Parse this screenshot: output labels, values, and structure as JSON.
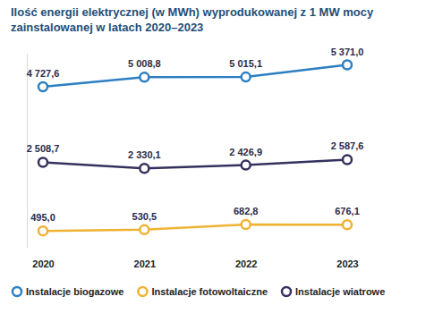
{
  "chart_data": {
    "type": "line",
    "title": "Ilość energii elektrycznej (w MWh) wyprodukowanej z 1 MW mocy zainstalowanej w latach 2020–2023",
    "categories": [
      "2020",
      "2021",
      "2022",
      "2023"
    ],
    "series": [
      {
        "name": "Instalacje biogazowe",
        "color": "#2b7fc2",
        "marker": "circle",
        "values": [
          4727.6,
          5008.8,
          5015.1,
          5371.0
        ],
        "value_labels": [
          "4 727,6",
          "5 008,8",
          "5 015,1",
          "5 371,0"
        ]
      },
      {
        "name": "Instalacje fotowoltaiczne",
        "color": "#f0b232",
        "marker": "circle",
        "values": [
          495.0,
          530.5,
          682.8,
          676.1
        ],
        "value_labels": [
          "495,0",
          "530,5",
          "682,8",
          "676,1"
        ]
      },
      {
        "name": "Instalacje wiatrowe",
        "color": "#35315f",
        "marker": "circle",
        "values": [
          2508.7,
          2330.1,
          2426.9,
          2587.6
        ],
        "value_labels": [
          "2 508,7",
          "2 330,1",
          "2 426,9",
          "2 587,6"
        ]
      }
    ],
    "ylim": [
      0,
      5700
    ],
    "tick_labels": "x",
    "data_labels": true,
    "legend": "bottom"
  }
}
